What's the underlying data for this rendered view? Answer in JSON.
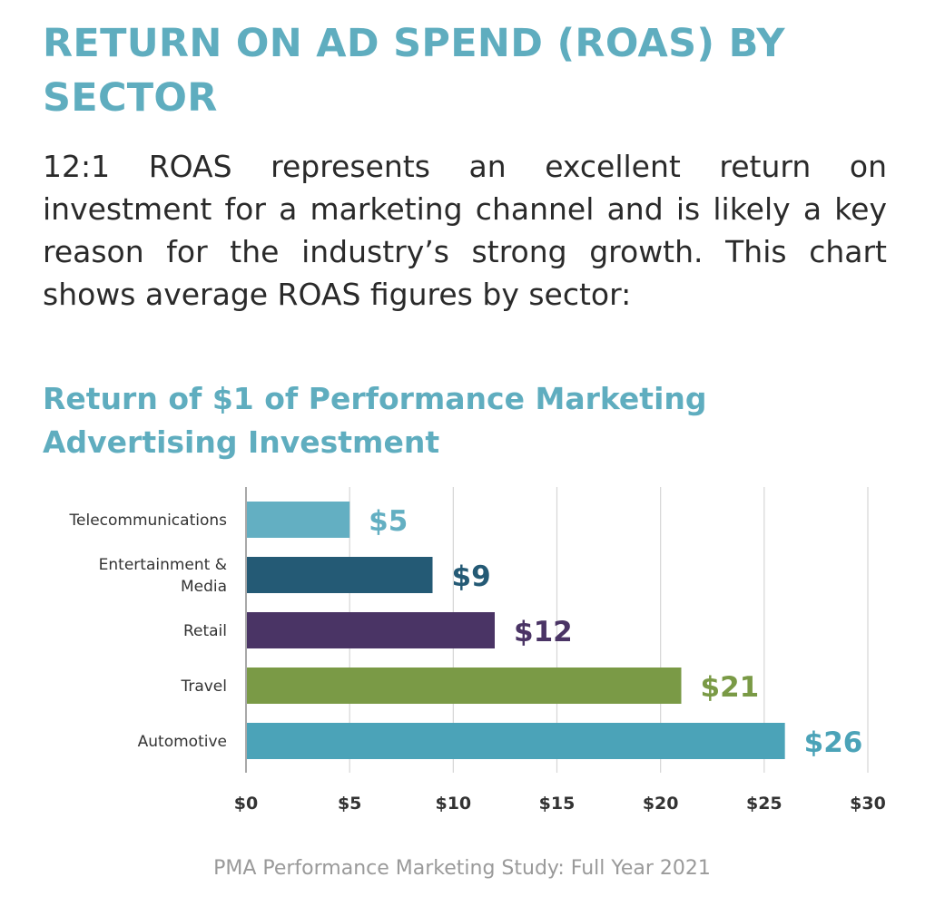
{
  "header": {
    "title": "RETURN ON AD SPEND (ROAS) BY SECTOR",
    "intro": "12:1 ROAS represents an excellent return on investment for a marketing channel and is likely a key reason for the industry’s strong growth. This chart shows average ROAS figures by sector:"
  },
  "chart_data": {
    "type": "bar",
    "orientation": "horizontal",
    "title": "Return of $1 of Performance Marketing Advertising Investment",
    "categories": [
      "Telecommunications",
      "Entertainment & Media",
      "Retail",
      "Travel",
      "Automotive"
    ],
    "category_label_lines": [
      [
        "Telecommunications"
      ],
      [
        "Entertainment &",
        "Media"
      ],
      [
        "Retail"
      ],
      [
        "Travel"
      ],
      [
        "Automotive"
      ]
    ],
    "values": [
      5,
      9,
      12,
      21,
      26
    ],
    "data_labels": [
      "$5",
      "$9",
      "$12",
      "$21",
      "$26"
    ],
    "bar_colors": [
      "#63afc2",
      "#245a75",
      "#4a3465",
      "#7a9a46",
      "#4ba3b8"
    ],
    "xlim": [
      0,
      30
    ],
    "xticks": [
      0,
      5,
      10,
      15,
      20,
      25,
      30
    ],
    "xtick_labels": [
      "$0",
      "$5",
      "$10",
      "$15",
      "$20",
      "$25",
      "$30"
    ],
    "grid": "vertical",
    "xlabel": "",
    "ylabel": ""
  },
  "footer": {
    "source": "PMA Performance Marketing Study: Full Year 2021"
  }
}
